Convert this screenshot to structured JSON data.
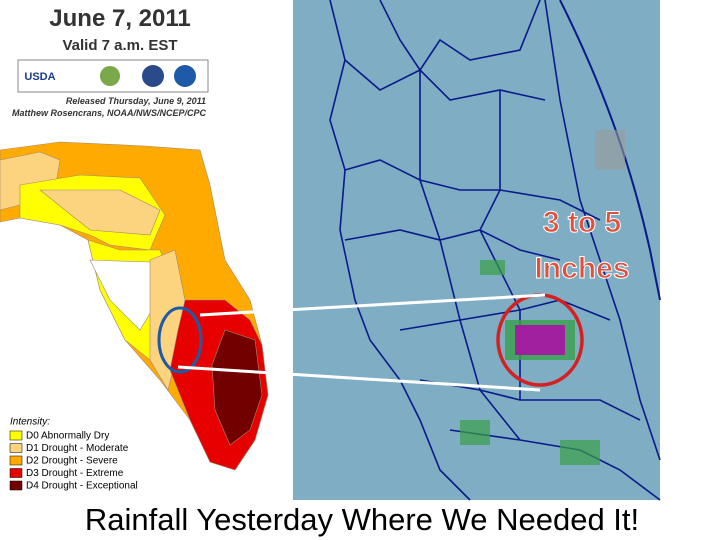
{
  "header": {
    "title": "June 7, 2011",
    "valid": "Valid 7 a.m. EST",
    "logo": "USDA",
    "released": "Released Thursday, June 9, 2011",
    "author": "Matthew Rosencrans, NOAA/NWS/NCEP/CPC"
  },
  "legend": {
    "title": "Intensity:",
    "items": [
      {
        "label": "D0 Abnormally Dry",
        "color": "#ffff00"
      },
      {
        "label": "D1 Drought - Moderate",
        "color": "#fcd37f"
      },
      {
        "label": "D2 Drought - Severe",
        "color": "#ffaa00"
      },
      {
        "label": "D3 Drought - Extreme",
        "color": "#e60000"
      },
      {
        "label": "D4 Drought - Exceptional",
        "color": "#730000"
      }
    ]
  },
  "annotation": {
    "line1": "3 to 5",
    "line2": "Inches"
  },
  "caption": "Rainfall Yesterday Where We Needed It!"
}
